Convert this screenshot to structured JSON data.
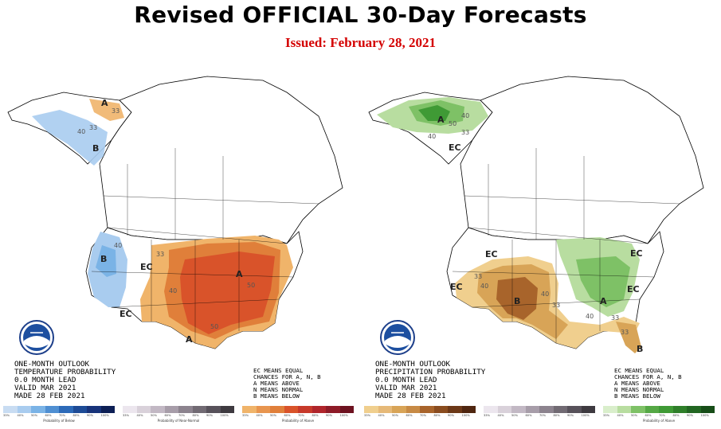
{
  "header": {
    "title": "Revised OFFICIAL 30-Day Forecasts",
    "issued": "Issued: February 28, 2021"
  },
  "colors": {
    "above_1": "#f0b46a",
    "above_2": "#e07f3a",
    "above_3": "#d9532a",
    "below_1": "#a9ccef",
    "below_2": "#7ab3e6",
    "wet_1": "#b8dda0",
    "wet_2": "#7ec166",
    "wet_3": "#3f9a35",
    "dry_1": "#f0cf8e",
    "dry_2": "#d8a457",
    "dry_3": "#a8642b"
  },
  "temperature_map": {
    "caption": "ONE-MONTH OUTLOOK\nTEMPERATURE PROBABILITY\n0.0 MONTH LEAD\nVALID MAR 2021\nMADE 28 FEB 2021",
    "note": "EC MEANS EQUAL\nCHANCES FOR A, N, B\nA MEANS ABOVE\nN MEANS NORMAL\nB MEANS BELOW",
    "labels": {
      "alaska_a": "A",
      "alaska_b": "B",
      "alaska_40": "40",
      "alaska_33": "33",
      "alaska_33b": "33",
      "west_b": "B",
      "west_40": "40",
      "ec_1": "EC",
      "ec_2": "EC",
      "n_33": "33",
      "n_40": "40",
      "south_a": "A",
      "east_a": "A",
      "n_50": "50",
      "s_50": "50"
    },
    "legend_bars": [
      {
        "label": "Probability of Below",
        "ticks": [
          "33%",
          "40%",
          "50%",
          "60%",
          "70%",
          "80%",
          "90%",
          "100%"
        ],
        "colors": [
          "#c8dcf2",
          "#a9ccef",
          "#7ab3e6",
          "#4f8fd2",
          "#2c6ab8",
          "#1d4b96",
          "#17337a",
          "#0d1f55"
        ]
      },
      {
        "label": "Probability of Near-Normal",
        "ticks": [
          "33%",
          "40%",
          "50%",
          "60%",
          "70%",
          "80%",
          "90%",
          "100%"
        ],
        "colors": [
          "#ece6ee",
          "#d9d1da",
          "#c2b8c4",
          "#a79da9",
          "#8c838e",
          "#716a73",
          "#57515a",
          "#3e3a40"
        ]
      },
      {
        "label": "Probability of Above",
        "ticks": [
          "33%",
          "40%",
          "50%",
          "60%",
          "70%",
          "80%",
          "90%",
          "100%"
        ],
        "colors": [
          "#f0b46a",
          "#e8954f",
          "#e07f3a",
          "#d9532a",
          "#c7392a",
          "#b0252b",
          "#8e1b27",
          "#6d1220"
        ]
      }
    ]
  },
  "precipitation_map": {
    "caption": "ONE-MONTH OUTLOOK\nPRECIPITATION PROBABILITY\n0.0 MONTH LEAD\nVALID MAR 2021\nMADE 28 FEB 2021",
    "note": "EC MEANS EQUAL\nCHANCES FOR A, N, B\nA MEANS ABOVE\nN MEANS NORMAL\nB MEANS BELOW",
    "labels": {
      "alaska_a": "A",
      "alaska_50": "50",
      "alaska_40": "40",
      "alaska_33": "33",
      "alaska_40b": "40",
      "alaska_ec": "EC",
      "ec_nw": "EC",
      "ec_w": "EC",
      "ec_ne": "EC",
      "ec_e": "EC",
      "sw_b": "B",
      "sw_33": "33",
      "sw_40": "40",
      "sw_40b": "40",
      "sw_33b": "33",
      "east_a": "A",
      "east_33": "33",
      "east_40": "40",
      "fl_b": "B",
      "fl_33": "33"
    },
    "legend_bars": [
      {
        "label": "",
        "ticks": [
          "33%",
          "40%",
          "50%",
          "60%",
          "70%",
          "80%",
          "90%",
          "100%"
        ],
        "colors": [
          "#f0cf8e",
          "#e6b978",
          "#d8a457",
          "#c78a45",
          "#a8642b",
          "#8a4c1f",
          "#6c3817",
          "#4f2610"
        ]
      },
      {
        "label": "",
        "ticks": [
          "33%",
          "40%",
          "50%",
          "60%",
          "70%",
          "80%",
          "90%",
          "100%"
        ],
        "colors": [
          "#ece6ee",
          "#d9d1da",
          "#c2b8c4",
          "#a79da9",
          "#8c838e",
          "#716a73",
          "#57515a",
          "#3e3a40"
        ]
      },
      {
        "label": "Probability of Above",
        "ticks": [
          "33%",
          "40%",
          "50%",
          "60%",
          "70%",
          "80%",
          "90%",
          "100%"
        ],
        "colors": [
          "#d9eecb",
          "#b8dda0",
          "#7ec166",
          "#55a845",
          "#3f9a35",
          "#2f7f2a",
          "#226622",
          "#174d18"
        ]
      }
    ]
  }
}
